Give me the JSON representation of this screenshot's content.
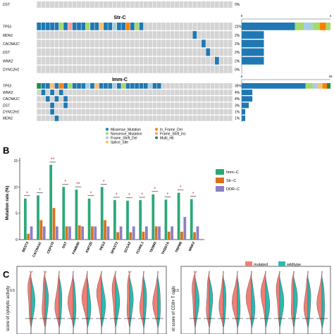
{
  "colors": {
    "missense": "#1f78b4",
    "nonsense": "#a6d96a",
    "frame_shift_del": "#a6cee3",
    "splice_site": "#fdbf6f",
    "in_frame_del": "#ff7f00",
    "frame_shift_ins": "#fb9a99",
    "multi_hit": "#238b45",
    "empty_cell": "#d4d4d4",
    "imm": "#2ca877",
    "str": "#d9711c",
    "ddr": "#8b80c2",
    "mutated": "#f07f75",
    "wildtype": "#2fb8b0",
    "sig": "#e0201f"
  },
  "panel_a": {
    "top_row": {
      "gene": "DST",
      "pct": "0%"
    },
    "groups": [
      {
        "title": "Str-C",
        "axis_max": 4,
        "axis_labels": [
          "0",
          "4"
        ],
        "genes": [
          "TP53",
          "MDN1",
          "CACNA1C",
          "DST",
          "WNK2",
          "DYNC2H1"
        ],
        "pcts": [
          "22%",
          "2%",
          "2%",
          "2%",
          "2%",
          "0%"
        ],
        "counts": [
          4,
          1,
          1,
          1,
          1,
          0
        ]
      },
      {
        "title": "Imm-C",
        "axis_max": 25,
        "axis_labels": [
          "0",
          "25"
        ],
        "genes": [
          "TP53",
          "WNK2",
          "CACNA1C",
          "DST",
          "DYNC2H1",
          "MDN1"
        ],
        "pcts": [
          "35%",
          "4%",
          "4%",
          "3%",
          "1%",
          "1%"
        ],
        "counts": [
          25,
          3,
          3,
          2,
          1,
          1
        ]
      }
    ]
  },
  "legend_a": {
    "items": [
      {
        "label": "Missense_Mutation",
        "key": "missense"
      },
      {
        "label": "Nonsense_Mutation",
        "key": "nonsense"
      },
      {
        "label": "Frame_Shift_Del",
        "key": "frame_shift_del"
      },
      {
        "label": "Splice_Site",
        "key": "splice_site"
      },
      {
        "label": "In_Frame_Del",
        "key": "in_frame_del"
      },
      {
        "label": "Frame_Shift_Ins",
        "key": "frame_shift_ins"
      },
      {
        "label": "Multi_Hit",
        "key": "multi_hit"
      }
    ]
  },
  "panel_b": {
    "label": "B",
    "legend": [
      "Imm−C",
      "Str−C",
      "DDR−C"
    ],
    "sig_marks": [
      "*",
      "*",
      "**",
      "*",
      "**",
      "*",
      "*",
      "*",
      "*",
      "*",
      "*",
      "*",
      "*",
      "*"
    ]
  },
  "chart_data": {
    "type": "bar",
    "ylabel": "Mutation rate (%)",
    "categories": [
      "BEST3",
      "CACNA1C",
      "CEP170",
      "DST",
      "FAM83D",
      "KMT2D",
      "PEG3",
      "SPAST2",
      "SCGA2",
      "TCHHL1",
      "TENM3",
      "THSD7A",
      "TRPM8",
      "WNK2"
    ],
    "series": [
      {
        "name": "Imm−C",
        "values": [
          7.8,
          8.4,
          14.2,
          10.0,
          9.5,
          7.8,
          10.0,
          7.5,
          7.4,
          7.5,
          8.6,
          7.6,
          8.9,
          7.7
        ]
      },
      {
        "name": "Str−C",
        "values": [
          1.1,
          3.7,
          6.0,
          2.5,
          2.7,
          2.5,
          3.7,
          1.4,
          1.4,
          1.5,
          2.5,
          1.5,
          1.5,
          1.4
        ]
      },
      {
        "name": "DDR−C",
        "values": [
          2.5,
          2.5,
          2.5,
          2.5,
          2.5,
          2.5,
          2.5,
          2.5,
          2.5,
          2.5,
          2.5,
          2.5,
          4.3,
          2.5
        ]
      }
    ],
    "ylim": [
      0,
      15
    ]
  },
  "panel_c": {
    "label": "C",
    "legend": [
      "mutated",
      "wildtype"
    ],
    "left_ylabel": "score of cytolytic activity",
    "right_ylabel": "nt score of CD8+ T cells",
    "tick_05": "0.5",
    "left_marks": [
      "**",
      "**",
      "*",
      "*",
      "*",
      "*",
      "*",
      "**",
      "*",
      "*"
    ],
    "right_marks": [
      "**",
      "*",
      "*",
      "*",
      "*",
      "*",
      "*",
      "*",
      "*",
      "*"
    ]
  }
}
